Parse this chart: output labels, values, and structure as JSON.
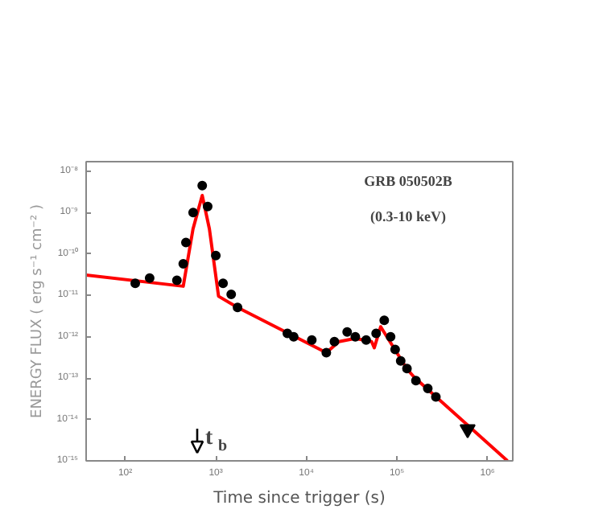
{
  "chart_data": {
    "type": "scatter",
    "title": "GRB 050502B",
    "subtitle": "(0.3-10 keV)",
    "xlabel": "Time since trigger (s)",
    "ylabel": "ENERGY FLUX ( erg s⁻¹ cm⁻² )",
    "log": "xy",
    "grid": false,
    "xlim": [
      37,
      1900000
    ],
    "ylim": [
      1e-15,
      1.7e-08
    ],
    "xticks": [
      {
        "value": 100,
        "label": "10²"
      },
      {
        "value": 1000,
        "label": "10³"
      },
      {
        "value": 10000,
        "label": "10⁴"
      },
      {
        "value": 100000,
        "label": "10⁵"
      },
      {
        "value": 1000000,
        "label": "10⁶"
      }
    ],
    "yticks": [
      {
        "value": 1e-15,
        "label": "10⁻¹⁵"
      },
      {
        "value": 1e-14,
        "label": "10⁻¹⁴"
      },
      {
        "value": 1e-13,
        "label": "10⁻¹³"
      },
      {
        "value": 1e-12,
        "label": "10⁻¹²"
      },
      {
        "value": 1e-11,
        "label": "10⁻¹¹"
      },
      {
        "value": 1e-10,
        "label": "10⁻¹⁰"
      },
      {
        "value": 1e-09,
        "label": "10⁻⁹"
      },
      {
        "value": 1e-08,
        "label": "10⁻⁸"
      }
    ],
    "annotations": [
      "t$_{b}$"
    ],
    "series": [
      {
        "type": "line",
        "color": "#ff0000",
        "x": [
          37,
          437,
          560,
          708,
          850,
          1072,
          1738,
          16600,
          22900,
          34700,
          52500,
          56200,
          66100,
          129000,
          155000,
          1660000
        ],
        "values": [
          3.1e-11,
          1.66e-11,
          4e-10,
          2.6e-09,
          4e-10,
          9.5e-12,
          5.1e-12,
          4.1e-13,
          7.6e-13,
          9.1e-13,
          7.6e-13,
          5.4e-13,
          1.74e-12,
          1.66e-13,
          1.05e-13,
          1e-15
        ]
      },
      {
        "color": "#000000",
        "marker": "circle",
        "x": [
          129,
          186,
          372,
          437,
          468,
          562,
          708,
          813,
          1000,
          1202,
          1479,
          1738,
          6166,
          7244,
          11480,
          16600,
          20400,
          28200,
          34700,
          45700,
          58900,
          72400,
          85100,
          95500,
          110000,
          129000,
          162000,
          219000,
          269000
        ],
        "values": [
          1.95e-11,
          2.6e-11,
          2.3e-11,
          5.8e-11,
          1.9e-10,
          1e-09,
          4.5e-09,
          1.4e-09,
          9.1e-11,
          1.95e-11,
          1.05e-11,
          5.1e-12,
          1.2e-12,
          1e-12,
          8.3e-13,
          4.1e-13,
          7.6e-13,
          1.3e-12,
          1e-12,
          8.3e-13,
          1.2e-12,
          2.5e-12,
          1e-12,
          4.9e-13,
          2.6e-13,
          1.7e-13,
          8.7e-14,
          5.6e-14,
          3.5e-14
        ]
      },
      {
        "color": "#000000",
        "marker": "triangle",
        "x": [
          603000
        ],
        "values": [
          5.8e-15
        ]
      }
    ]
  }
}
